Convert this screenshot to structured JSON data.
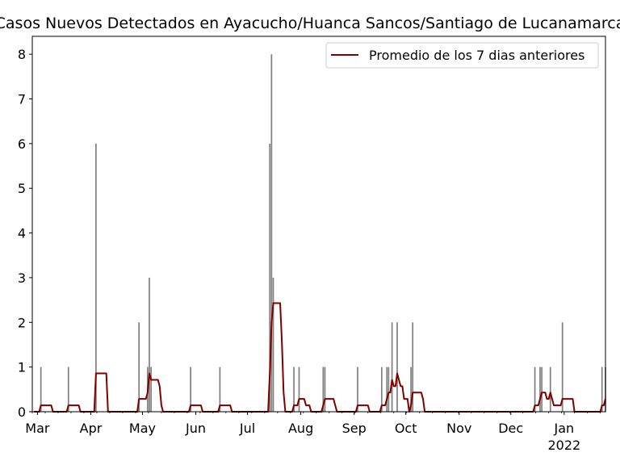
{
  "chart_data": {
    "type": "bar+line",
    "title": "Casos Nuevos Detectados en Ayacucho/Huanca Sancos/Santiago de Lucanamarca",
    "xlabel": "",
    "ylabel": "",
    "x_range": [
      "2021-02-26",
      "2022-01-25"
    ],
    "ylim": [
      0,
      8.4
    ],
    "y_ticks": [
      0,
      1,
      2,
      3,
      4,
      5,
      6,
      7,
      8
    ],
    "x_ticks": [
      {
        "date": "2021-03-01",
        "label": "Mar",
        "sublabel": ""
      },
      {
        "date": "2021-04-01",
        "label": "Apr",
        "sublabel": ""
      },
      {
        "date": "2021-05-01",
        "label": "May",
        "sublabel": ""
      },
      {
        "date": "2021-06-01",
        "label": "Jun",
        "sublabel": ""
      },
      {
        "date": "2021-07-01",
        "label": "Jul",
        "sublabel": ""
      },
      {
        "date": "2021-08-01",
        "label": "Aug",
        "sublabel": ""
      },
      {
        "date": "2021-09-01",
        "label": "Sep",
        "sublabel": ""
      },
      {
        "date": "2021-10-01",
        "label": "Oct",
        "sublabel": ""
      },
      {
        "date": "2021-11-01",
        "label": "Nov",
        "sublabel": ""
      },
      {
        "date": "2021-12-01",
        "label": "Dec",
        "sublabel": ""
      },
      {
        "date": "2022-01-01",
        "label": "Jan",
        "sublabel": "2022"
      }
    ],
    "grid": false,
    "legend_position": "top-right",
    "bar_color": "#808080",
    "line_color": "#800000",
    "daily_cases": [
      {
        "date": "2021-03-03",
        "value": 1
      },
      {
        "date": "2021-03-19",
        "value": 1
      },
      {
        "date": "2021-04-04",
        "value": 6
      },
      {
        "date": "2021-04-29",
        "value": 2
      },
      {
        "date": "2021-05-04",
        "value": 1
      },
      {
        "date": "2021-05-05",
        "value": 3
      },
      {
        "date": "2021-05-06",
        "value": 1
      },
      {
        "date": "2021-05-29",
        "value": 1
      },
      {
        "date": "2021-06-15",
        "value": 1
      },
      {
        "date": "2021-07-14",
        "value": 6
      },
      {
        "date": "2021-07-15",
        "value": 8
      },
      {
        "date": "2021-07-16",
        "value": 3
      },
      {
        "date": "2021-07-28",
        "value": 1
      },
      {
        "date": "2021-07-31",
        "value": 1
      },
      {
        "date": "2021-08-14",
        "value": 1
      },
      {
        "date": "2021-08-15",
        "value": 1
      },
      {
        "date": "2021-09-03",
        "value": 1
      },
      {
        "date": "2021-09-17",
        "value": 1
      },
      {
        "date": "2021-09-20",
        "value": 1
      },
      {
        "date": "2021-09-21",
        "value": 1
      },
      {
        "date": "2021-09-23",
        "value": 2
      },
      {
        "date": "2021-09-26",
        "value": 2
      },
      {
        "date": "2021-10-04",
        "value": 1
      },
      {
        "date": "2021-10-05",
        "value": 2
      },
      {
        "date": "2021-12-15",
        "value": 1
      },
      {
        "date": "2021-12-18",
        "value": 1
      },
      {
        "date": "2021-12-19",
        "value": 1
      },
      {
        "date": "2021-12-24",
        "value": 1
      },
      {
        "date": "2021-12-31",
        "value": 2
      },
      {
        "date": "2022-01-23",
        "value": 1
      },
      {
        "date": "2022-01-25",
        "value": 1
      }
    ],
    "series": [
      {
        "name": "Promedio de los 7 dias anteriores",
        "type": "line",
        "values": "7-day trailing average of daily_cases"
      }
    ]
  }
}
